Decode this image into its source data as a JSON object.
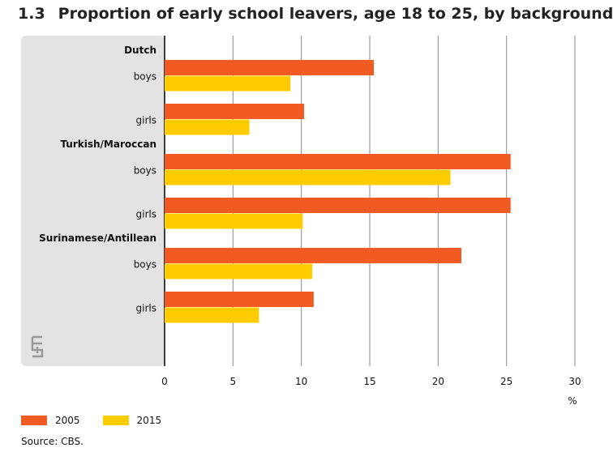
{
  "title": {
    "number": "1.3",
    "text": "Proportion of early school leavers, age 18 to 25, by background"
  },
  "chart_data": {
    "type": "bar",
    "orientation": "horizontal",
    "title": "Proportion of early school leavers, age 18 to 25, by background",
    "xlabel": "%",
    "xlim": [
      0,
      30
    ],
    "xticks": [
      0,
      5,
      10,
      15,
      20,
      25,
      30
    ],
    "grid": true,
    "legend_position": "bottom-left",
    "groups": [
      {
        "name": "Dutch",
        "categories": [
          {
            "label": "boys",
            "values": [
              15.3,
              9.2
            ]
          },
          {
            "label": "girls",
            "values": [
              10.2,
              6.2
            ]
          }
        ]
      },
      {
        "name": "Turkish/Maroccan",
        "categories": [
          {
            "label": "boys",
            "values": [
              25.3,
              20.9
            ]
          },
          {
            "label": "girls",
            "values": [
              25.3,
              10.1
            ]
          }
        ]
      },
      {
        "name": "Surinamese/Antillean",
        "categories": [
          {
            "label": "boys",
            "values": [
              21.7,
              10.8
            ]
          },
          {
            "label": "girls",
            "values": [
              10.9,
              6.9
            ]
          }
        ]
      }
    ],
    "series": [
      {
        "name": "2005",
        "color": "#f15a22"
      },
      {
        "name": "2015",
        "color": "#ffcc00"
      }
    ]
  },
  "source": "Source: CBS.",
  "logo_text": "cbs"
}
